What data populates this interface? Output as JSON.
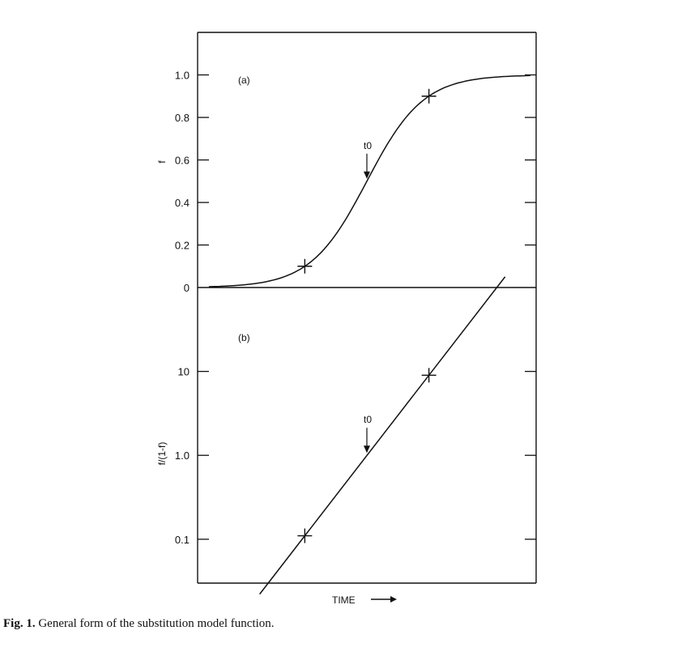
{
  "caption": {
    "prefix": "Fig. 1.",
    "text": "General form of the substitution model function."
  },
  "chart_data": [
    {
      "type": "line",
      "panel_label": "(a)",
      "ylabel": "f",
      "yticks": [
        {
          "value": 0,
          "label": "0"
        },
        {
          "value": 0.2,
          "label": "0.2"
        },
        {
          "value": 0.4,
          "label": "0.4"
        },
        {
          "value": 0.6,
          "label": "0.6"
        },
        {
          "value": 0.8,
          "label": "0.8"
        },
        {
          "value": 1.0,
          "label": "1.0"
        }
      ],
      "ylim": [
        0,
        1.2
      ],
      "xlim": [
        -6,
        6
      ],
      "curve": "logistic",
      "curve_x_range": [
        -5.6,
        5.8
      ],
      "markers": [
        {
          "x": -2.2,
          "y": 0.1
        },
        {
          "x": 2.2,
          "y": 0.9
        }
      ],
      "annotation": {
        "label": "t0",
        "x": 0,
        "y": 0.5
      }
    },
    {
      "type": "line",
      "panel_label": "(b)",
      "ylabel": "f/(1-f)",
      "yscale": "log",
      "yticks": [
        {
          "value": 0.1,
          "label": "0.1"
        },
        {
          "value": 1.0,
          "label": "1.0"
        },
        {
          "value": 10,
          "label": "10"
        }
      ],
      "ylim": [
        0.03,
        100
      ],
      "xlim": [
        -6,
        6
      ],
      "line_x_range": [
        -3.8,
        4.9
      ],
      "markers": [
        {
          "x": -2.2,
          "y": 0.11
        },
        {
          "x": 2.2,
          "y": 9
        }
      ],
      "annotation": {
        "label": "t0",
        "x": 0,
        "y": 1.0
      }
    }
  ],
  "xaxis": {
    "label": "TIME"
  }
}
